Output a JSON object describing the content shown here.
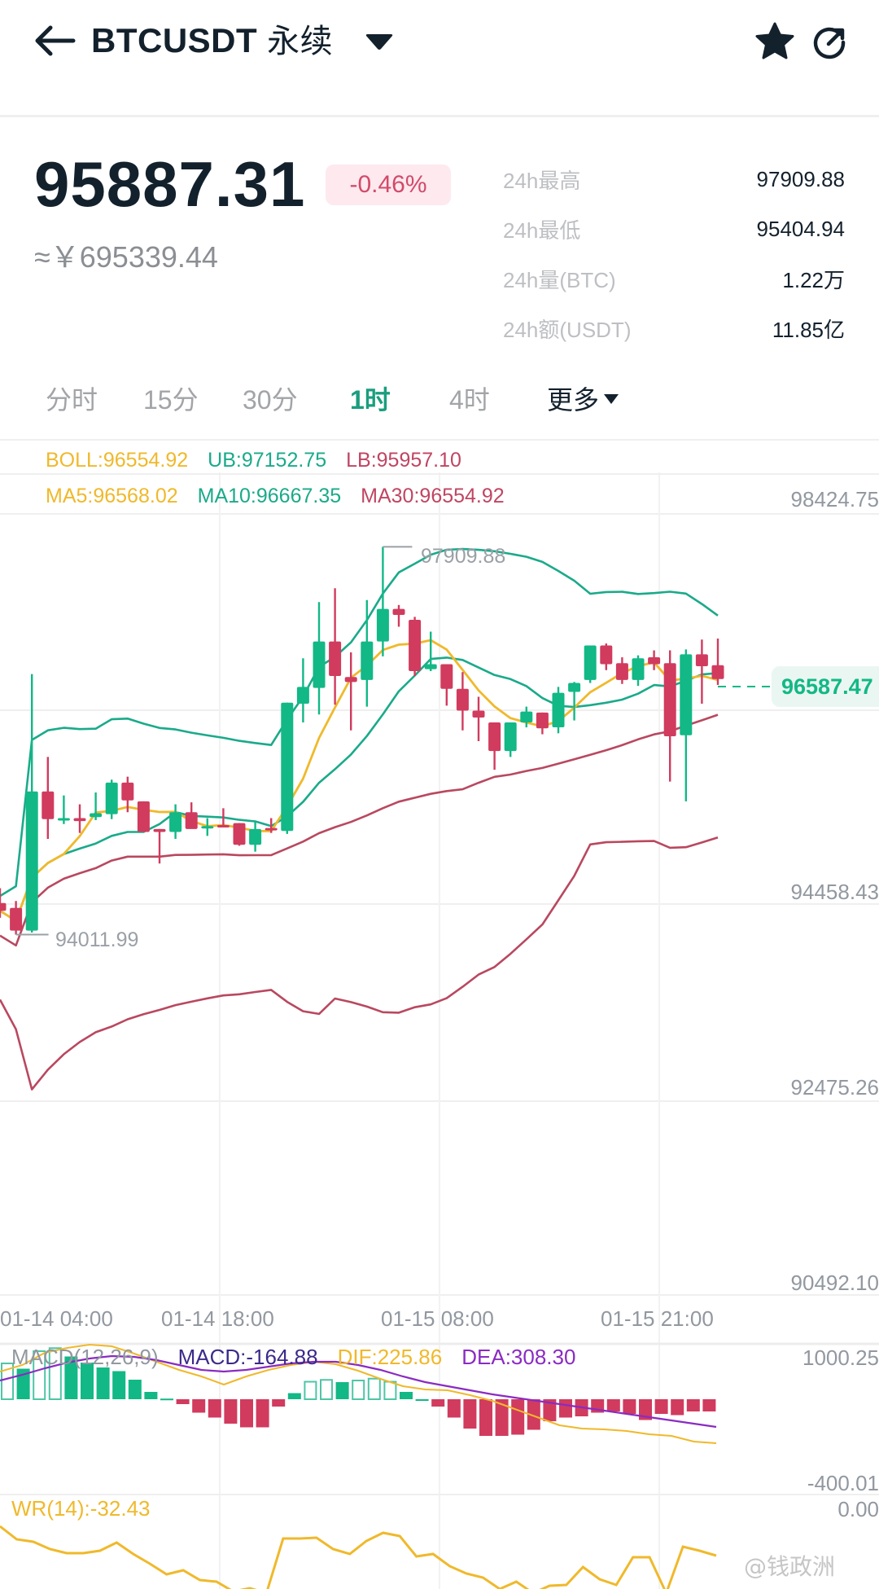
{
  "header": {
    "symbol": "BTCUSDT",
    "contract_type": "永续",
    "icons": [
      "back-arrow-icon",
      "dropdown-caret-icon",
      "star-icon",
      "share-icon"
    ]
  },
  "ticker": {
    "last_price": "95887.31",
    "change_pct": "-0.46%",
    "cny_equiv": "≈￥695339.44",
    "stats": [
      {
        "label": "24h最高",
        "value": "97909.88"
      },
      {
        "label": "24h最低",
        "value": "95404.94"
      },
      {
        "label": "24h量(BTC)",
        "value": "1.22万"
      },
      {
        "label": "24h额(USDT)",
        "value": "11.85亿"
      }
    ]
  },
  "intervals": {
    "items": [
      {
        "label": "分时",
        "active": false
      },
      {
        "label": "15分",
        "active": false
      },
      {
        "label": "30分",
        "active": false
      },
      {
        "label": "1时",
        "active": true
      },
      {
        "label": "4时",
        "active": false
      },
      {
        "label": "更多",
        "active": false
      }
    ]
  },
  "indicators": {
    "boll": {
      "label": "BOLL:96554.92",
      "ub": "UB:97152.75",
      "lb": "LB:95957.10"
    },
    "ma": {
      "ma5": "MA5:96568.02",
      "ma10": "MA10:96667.35",
      "ma30": "MA30:96554.92"
    },
    "macd": {
      "title": "MACD(12,26,9)",
      "macd": "MACD:-164.88",
      "dif": "DIF:225.86",
      "dea": "DEA:308.30",
      "axis_top": "1000.25",
      "axis_bottom": "-400.01"
    },
    "wr": {
      "title": "WR(14):-32.43",
      "axis_top": "0.00"
    }
  },
  "chart": {
    "price_axis": [
      "98424.75",
      "94458.43",
      "92475.26",
      "90492.10"
    ],
    "time_axis": [
      "01-14 04:00",
      "01-14 18:00",
      "01-15 08:00",
      "01-15 21:00"
    ],
    "last_price_tag": "96587.47",
    "high_marker": "97909.88",
    "low_marker": "94011.99"
  },
  "colors": {
    "up": "#12b886",
    "down": "#d13b5e",
    "ma5": "#f0b92b",
    "ma10": "#1aaa8a",
    "ma30": "#b9485f",
    "macd_label": "#3c2a8a",
    "dea": "#8a2bc2",
    "active_tab": "#1a9e7e"
  },
  "watermark": "@钱政洲",
  "chart_data": {
    "type": "candlestick",
    "title": "BTCUSDT 永续 1时",
    "interval": "1h",
    "ylim": [
      90492.1,
      98424.75
    ],
    "y_ticks": [
      98424.75,
      94458.43,
      92475.26,
      90492.1
    ],
    "x_ticks": [
      "01-14 04:00",
      "01-14 18:00",
      "01-15 08:00",
      "01-15 21:00"
    ],
    "candles_ohlc": [
      [
        94300,
        94450,
        94150,
        94220
      ],
      [
        94250,
        94320,
        93980,
        94020
      ],
      [
        94020,
        96620,
        94000,
        95430
      ],
      [
        95430,
        95780,
        94950,
        95150
      ],
      [
        95150,
        95390,
        95100,
        95160
      ],
      [
        95160,
        95300,
        95010,
        95130
      ],
      [
        95170,
        95420,
        95140,
        95210
      ],
      [
        95200,
        95550,
        95150,
        95520
      ],
      [
        95520,
        95580,
        95220,
        95340
      ],
      [
        95330,
        95330,
        95130,
        95020
      ],
      [
        95050,
        95050,
        94700,
        95020
      ],
      [
        95020,
        95300,
        94950,
        95220
      ],
      [
        95220,
        95320,
        95090,
        95050
      ],
      [
        95080,
        95160,
        94980,
        95080
      ],
      [
        95090,
        95260,
        95070,
        95080
      ],
      [
        95110,
        95110,
        94880,
        94890
      ],
      [
        94890,
        95120,
        94820,
        95050
      ],
      [
        95060,
        95160,
        95010,
        95040
      ],
      [
        95030,
        96330,
        95000,
        96330
      ],
      [
        96320,
        96780,
        96130,
        96490
      ],
      [
        96480,
        97350,
        96210,
        96950
      ],
      [
        96950,
        97490,
        96310,
        96600
      ],
      [
        96590,
        96840,
        96050,
        96540
      ],
      [
        96560,
        97370,
        96290,
        96950
      ],
      [
        96950,
        97910,
        96800,
        97280
      ],
      [
        97280,
        97320,
        97100,
        97220
      ],
      [
        97170,
        97200,
        96600,
        96650
      ],
      [
        96670,
        97050,
        96650,
        96720
      ],
      [
        96720,
        96720,
        96300,
        96470
      ],
      [
        96470,
        96640,
        96050,
        96250
      ],
      [
        96250,
        96390,
        95940,
        96180
      ],
      [
        96130,
        96130,
        95650,
        95840
      ],
      [
        95840,
        96130,
        95780,
        96130
      ],
      [
        96130,
        96290,
        96080,
        96240
      ],
      [
        96230,
        96230,
        96010,
        96070
      ],
      [
        96080,
        96490,
        96020,
        96430
      ],
      [
        96440,
        96540,
        96150,
        96530
      ],
      [
        96560,
        96860,
        96530,
        96910
      ],
      [
        96910,
        96930,
        96660,
        96720
      ],
      [
        96730,
        96790,
        96520,
        96560
      ],
      [
        96560,
        96810,
        96500,
        96780
      ],
      [
        96790,
        96860,
        96660,
        96720
      ],
      [
        96730,
        96860,
        95530,
        95990
      ],
      [
        96000,
        96870,
        95330,
        96820
      ],
      [
        96820,
        96970,
        96320,
        96700
      ],
      [
        96710,
        96980,
        96510,
        96570
      ]
    ],
    "series": [
      {
        "name": "MA5 (yellow)",
        "last": 96568.02
      },
      {
        "name": "MA10 (teal)",
        "last": 96667.35
      },
      {
        "name": "MA30 (red)",
        "last": 96554.92
      },
      {
        "name": "BOLL UB",
        "last": 97152.75
      },
      {
        "name": "BOLL LB",
        "last": 95957.1
      }
    ],
    "annotations": [
      {
        "text": "97909.88",
        "type": "high"
      },
      {
        "text": "94011.99",
        "type": "low"
      },
      {
        "text": "96587.47",
        "type": "last-price"
      }
    ],
    "sub_charts": [
      {
        "name": "MACD(12,26,9)",
        "MACD": -164.88,
        "DIF": 225.86,
        "DEA": 308.3,
        "ylim": [
          -400.01,
          1000.25
        ]
      },
      {
        "name": "WR(14)",
        "value": -32.43,
        "ylim_top": 0.0
      }
    ]
  }
}
